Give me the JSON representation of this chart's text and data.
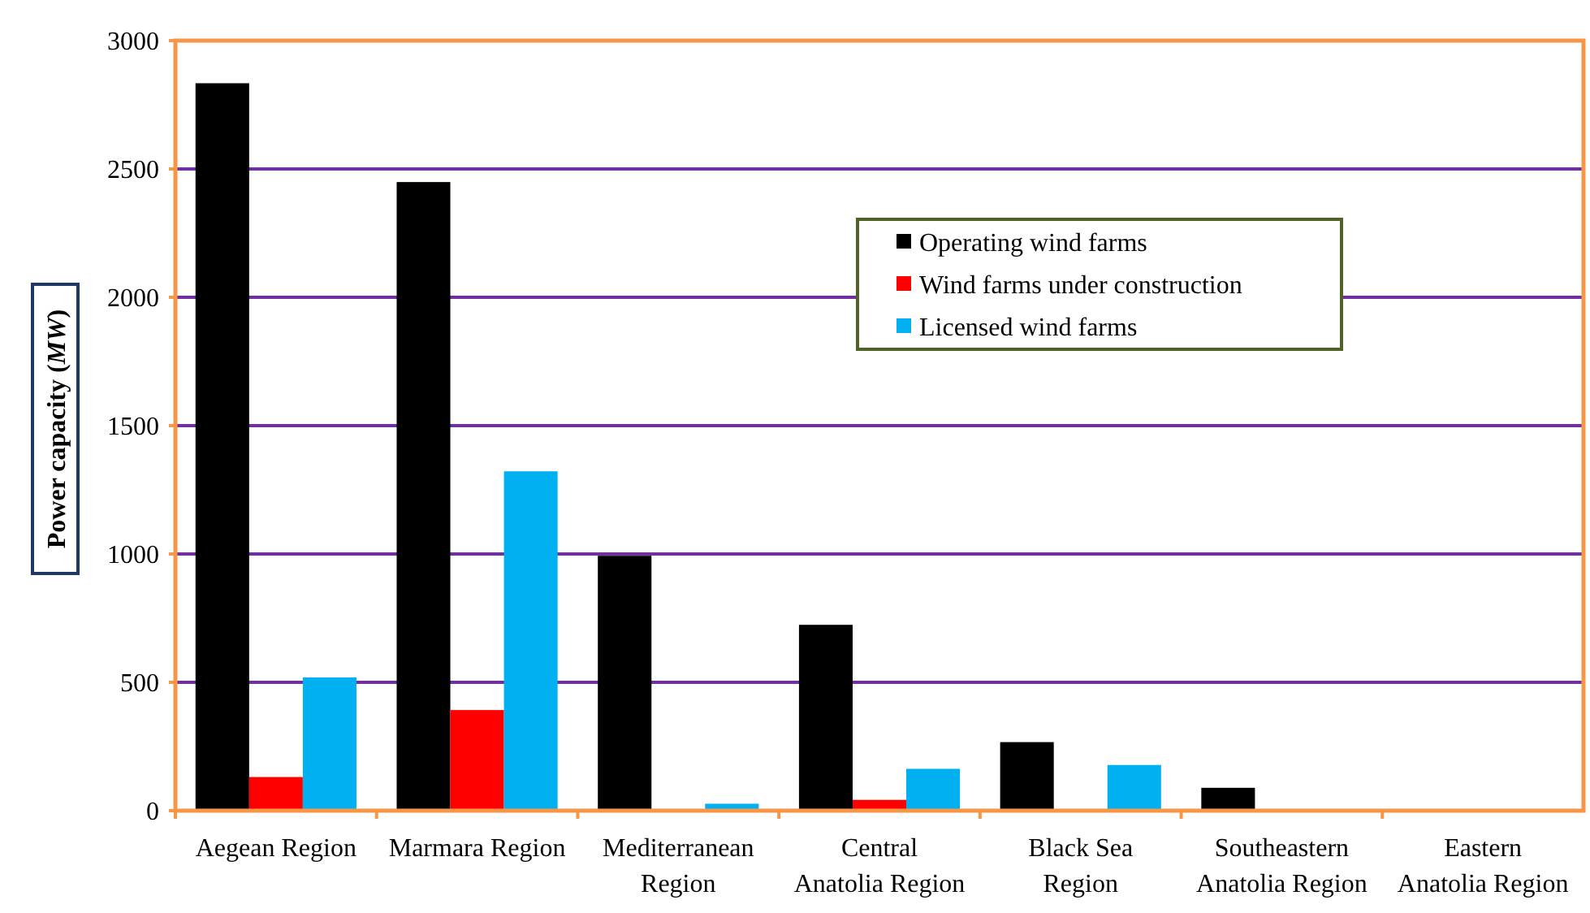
{
  "chart_data": {
    "type": "bar",
    "ylabel": "Power capacity (MW)",
    "categories": [
      "Aegean Region",
      "Marmara Region",
      "Mediterranean Region",
      "Central Anatolia Region",
      "Black Sea Region",
      "Southeastern Anatolia Region",
      "Eastern Anatolia Region"
    ],
    "series": [
      {
        "name": "Operating wind farms",
        "color": "#000000",
        "values": [
          2834,
          2449,
          993,
          724,
          267,
          89,
          null
        ]
      },
      {
        "name": "Wind farms under construction",
        "color": "#ff0000",
        "values": [
          131,
          392,
          null,
          42,
          null,
          null,
          null
        ]
      },
      {
        "name": "Licensed wind farms",
        "color": "#00b0f0",
        "values": [
          519,
          1322,
          27,
          163,
          178,
          null,
          null
        ]
      }
    ],
    "ylim": [
      0,
      3000
    ],
    "yticks": [
      0,
      500,
      1000,
      1500,
      2000,
      2500,
      3000
    ],
    "grid": "y",
    "legend": "top right"
  }
}
